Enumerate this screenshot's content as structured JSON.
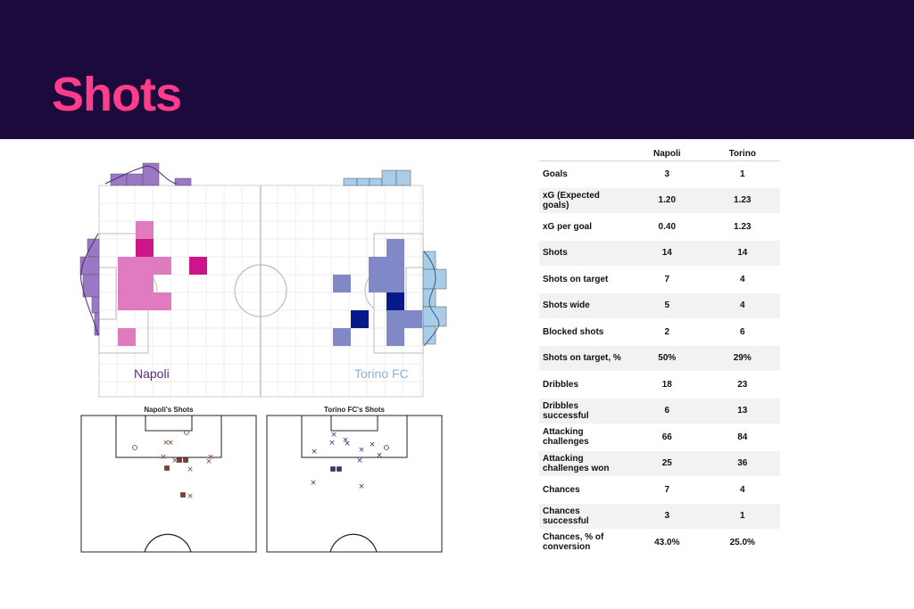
{
  "header": {
    "title": "Shots"
  },
  "pitch": {
    "home_label": "Napoli",
    "away_label": "Torino FC",
    "home_color": "#7a3fa0",
    "away_color": "#8ab4d8"
  },
  "shot_maps": {
    "home_title": "Napoli's Shots",
    "away_title": "Torino FC's Shots"
  },
  "stats": {
    "headers": [
      "",
      "Napoli",
      "Torino"
    ],
    "rows": [
      {
        "label": "Goals",
        "home": "3",
        "away": "1"
      },
      {
        "label": "xG (Expected goals)",
        "home": "1.20",
        "away": "1.23"
      },
      {
        "label": "xG per goal",
        "home": "0.40",
        "away": "1.23"
      },
      {
        "label": "Shots",
        "home": "14",
        "away": "14"
      },
      {
        "label": "Shots on target",
        "home": "7",
        "away": "4"
      },
      {
        "label": "Shots wide",
        "home": "5",
        "away": "4"
      },
      {
        "label": "Blocked shots",
        "home": "2",
        "away": "6"
      },
      {
        "label": "Shots on target, %",
        "home": "50%",
        "away": "29%"
      },
      {
        "label": "Dribbles",
        "home": "18",
        "away": "23"
      },
      {
        "label": "Dribbles successful",
        "home": "6",
        "away": "13"
      },
      {
        "label": "Attacking challenges",
        "home": "66",
        "away": "84"
      },
      {
        "label": "Attacking challenges won",
        "home": "25",
        "away": "36"
      },
      {
        "label": "Chances",
        "home": "7",
        "away": "4"
      },
      {
        "label": "Chances successful",
        "home": "3",
        "away": "1"
      },
      {
        "label": "Chances, % of conversion",
        "home": "43.0%",
        "away": "25.0%"
      }
    ]
  }
}
